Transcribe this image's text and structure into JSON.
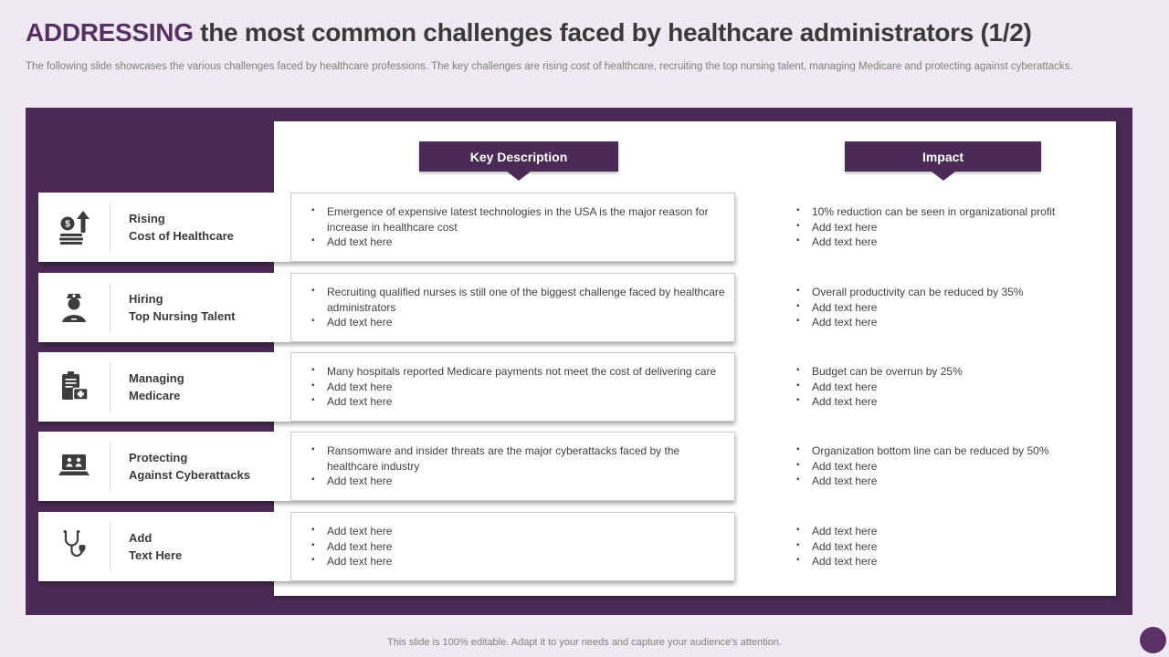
{
  "slide": {
    "title_highlight": "ADDRESSING",
    "title_rest": " the most common challenges faced by healthcare administrators (1/2)",
    "subtitle": "The following slide showcases the various challenges faced by healthcare professions. The key challenges are rising cost of healthcare, recruiting the top nursing talent, managing Medicare and protecting against cyberattacks.",
    "footer": "This slide is 100% editable. Adapt it to your needs and capture your audience's attention."
  },
  "table": {
    "header_description": "Key Description",
    "header_impact": "Impact",
    "rows": [
      {
        "icon": "rising-cost-icon",
        "label_line1": "Rising",
        "label_line2": "Cost of Healthcare",
        "description": [
          "Emergence of expensive latest technologies in the USA is the major reason for increase in healthcare cost",
          "Add text here"
        ],
        "impact": [
          "10% reduction can be seen in organizational profit",
          "Add text here",
          "Add text here"
        ]
      },
      {
        "icon": "nurse-icon",
        "label_line1": "Hiring",
        "label_line2": "Top Nursing Talent",
        "description": [
          "Recruiting qualified nurses is still one of the biggest challenge faced by healthcare administrators",
          "Add text here"
        ],
        "impact": [
          "Overall productivity can be reduced by 35%",
          "Add text here",
          "Add text here"
        ]
      },
      {
        "icon": "medicare-clipboard-icon",
        "label_line1": "Managing",
        "label_line2": "Medicare",
        "description": [
          "Many hospitals reported Medicare payments not meet the cost of delivering care",
          "Add text here",
          "Add text here"
        ],
        "impact": [
          "Budget can be overrun by 25%",
          "Add text here",
          "Add text here"
        ]
      },
      {
        "icon": "cyberattack-laptop-icon",
        "label_line1": "Protecting",
        "label_line2": "Against Cyberattacks",
        "description": [
          "Ransomware and insider threats are the major cyberattacks faced by the healthcare industry",
          "Add text here"
        ],
        "impact": [
          "Organization bottom line can be reduced by 50%",
          "Add text here",
          "Add text here"
        ]
      },
      {
        "icon": "stethoscope-heart-icon",
        "label_line1": "Add",
        "label_line2": "Text Here",
        "description": [
          "Add text here",
          "Add text here",
          "Add text here"
        ],
        "impact": [
          "Add text here",
          "Add text here",
          "Add text here"
        ]
      }
    ]
  },
  "colors": {
    "purple": "#4B2B56",
    "purple-accent": "#563263",
    "circle": "#5B3268",
    "bg": "#F0E9F3"
  }
}
